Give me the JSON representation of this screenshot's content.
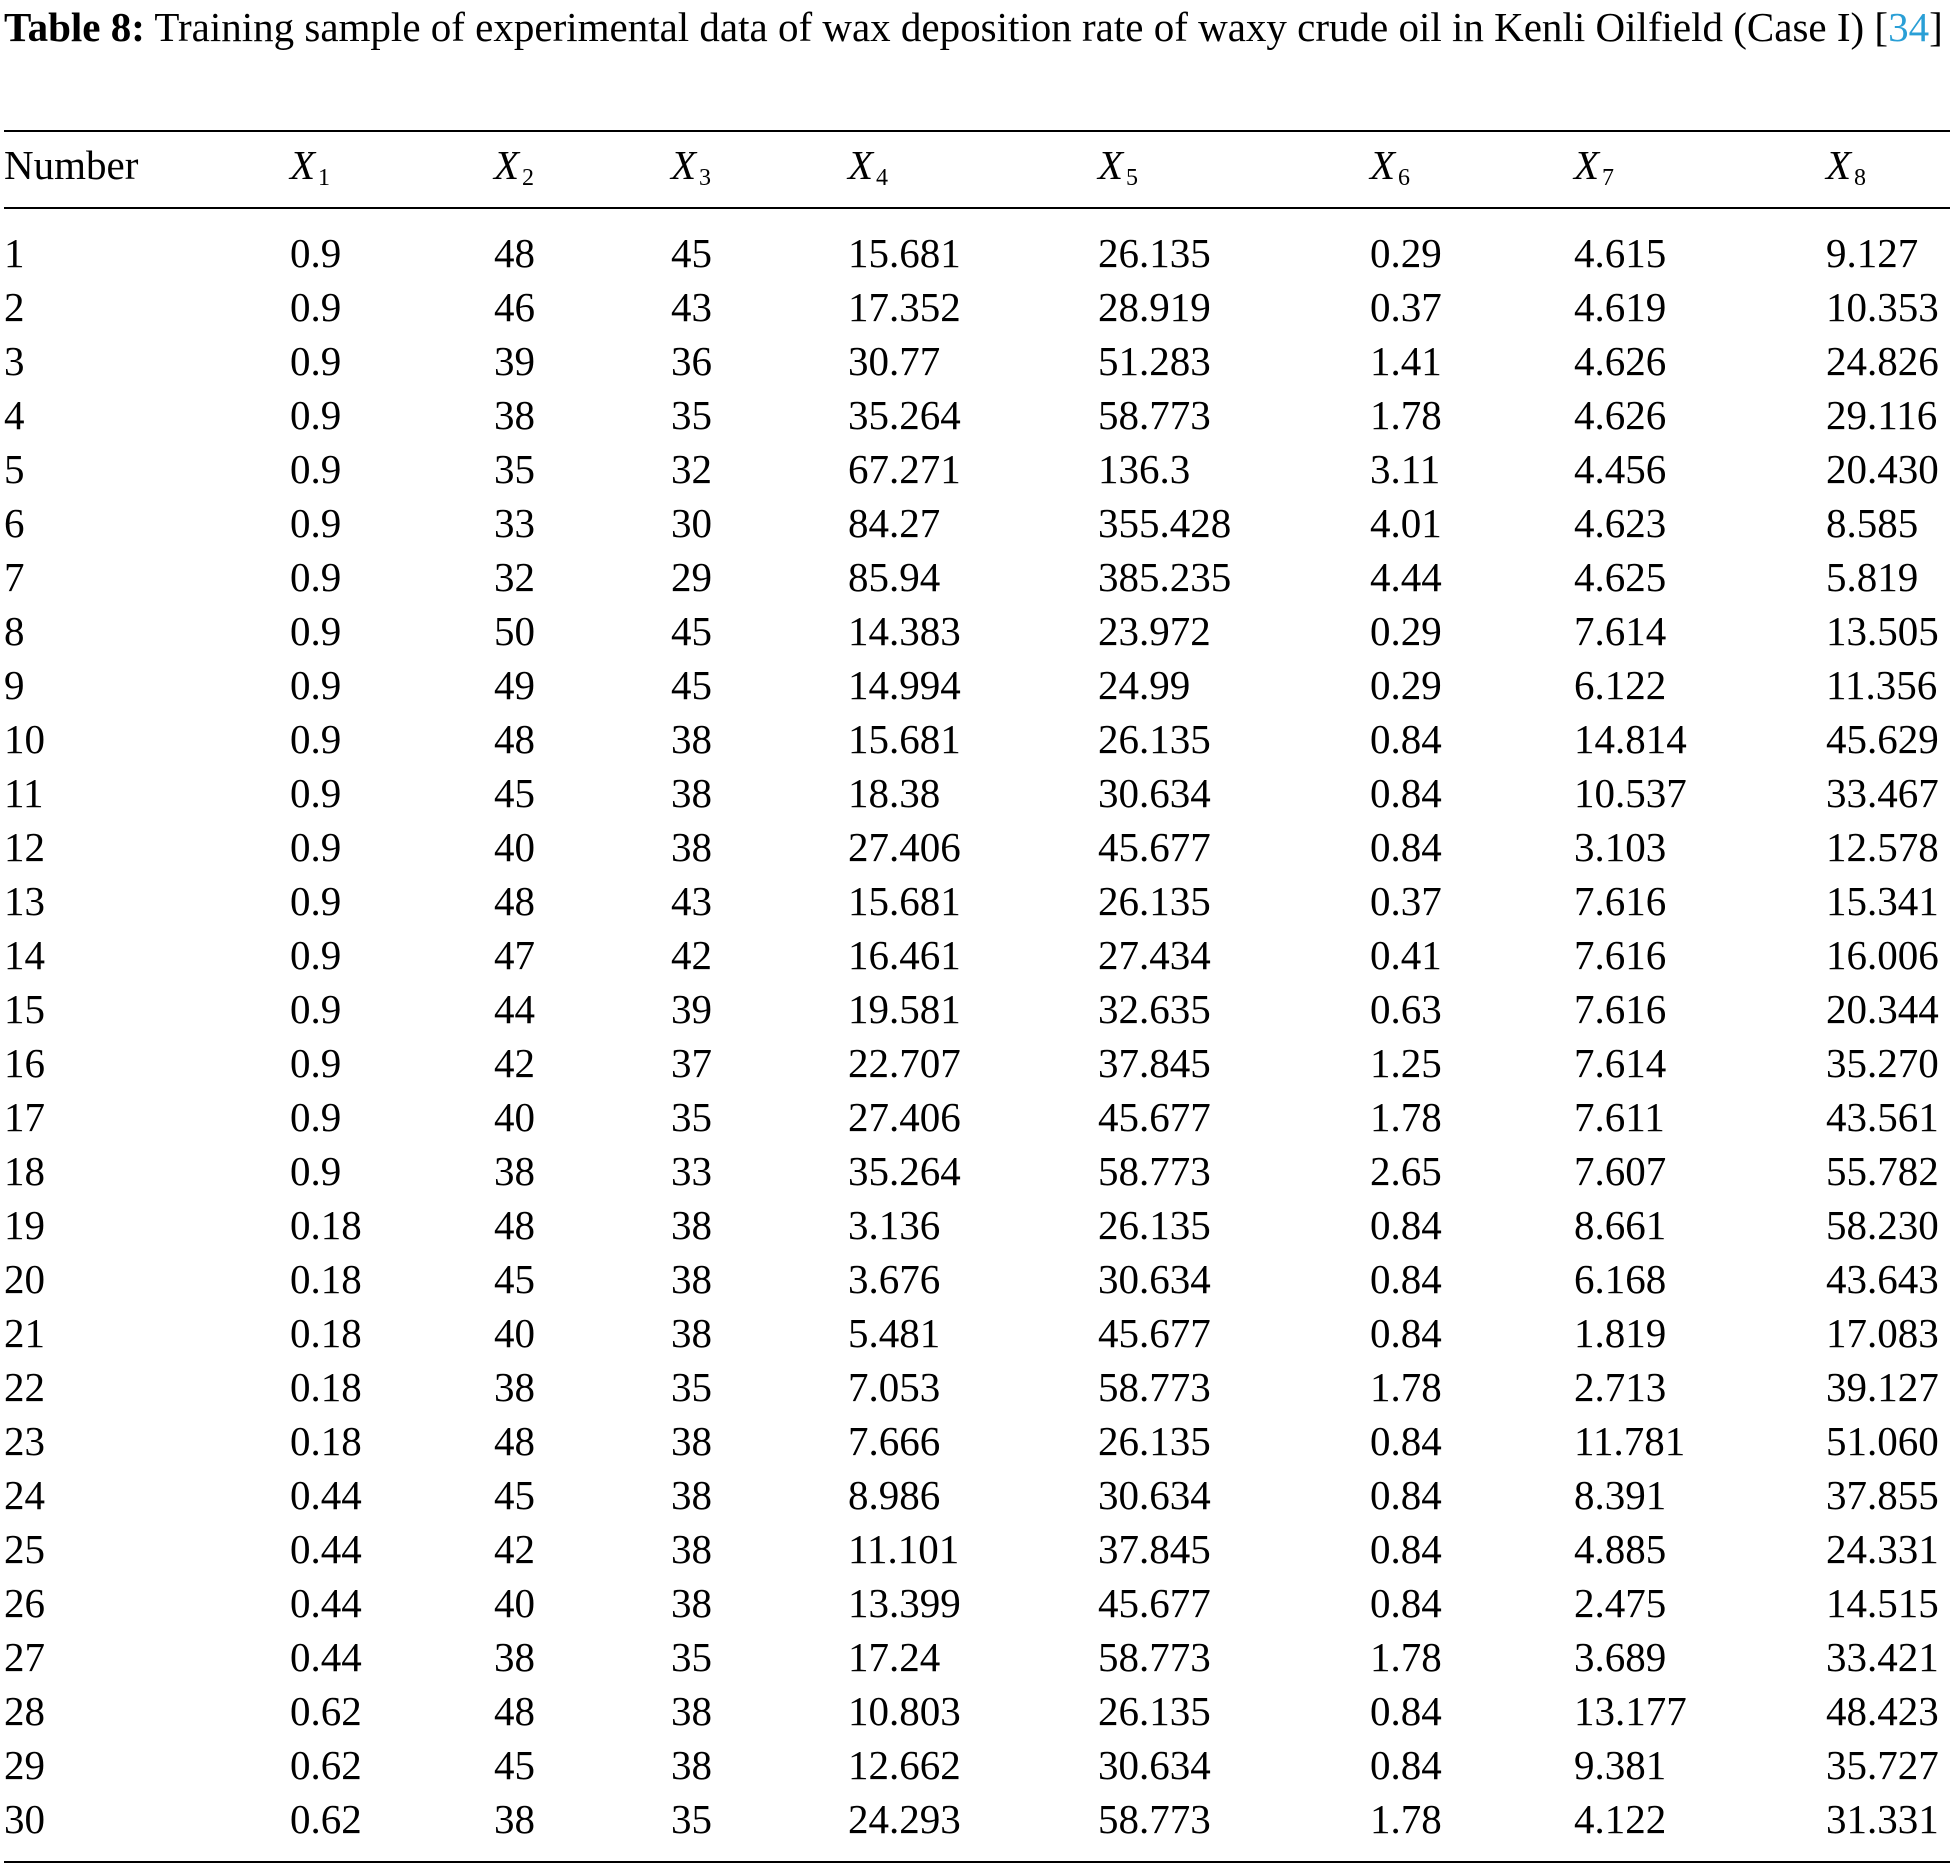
{
  "caption": {
    "label": "Table 8:",
    "text_before_cite": " Training sample of experimental data of wax deposition rate of waxy crude oil in Kenli Oilfield (Case I) [",
    "cite": "34",
    "text_after_cite": "]"
  },
  "table": {
    "header": {
      "number": "Number",
      "cols": [
        {
          "var": "X",
          "sub": "1"
        },
        {
          "var": "X",
          "sub": "2"
        },
        {
          "var": "X",
          "sub": "3"
        },
        {
          "var": "X",
          "sub": "4"
        },
        {
          "var": "X",
          "sub": "5"
        },
        {
          "var": "X",
          "sub": "6"
        },
        {
          "var": "X",
          "sub": "7"
        },
        {
          "var": "X",
          "sub": "8"
        }
      ]
    },
    "rows": [
      [
        "1",
        "0.9",
        "48",
        "45",
        "15.681",
        "26.135",
        "0.29",
        "4.615",
        "9.127"
      ],
      [
        "2",
        "0.9",
        "46",
        "43",
        "17.352",
        "28.919",
        "0.37",
        "4.619",
        "10.353"
      ],
      [
        "3",
        "0.9",
        "39",
        "36",
        "30.77",
        "51.283",
        "1.41",
        "4.626",
        "24.826"
      ],
      [
        "4",
        "0.9",
        "38",
        "35",
        "35.264",
        "58.773",
        "1.78",
        "4.626",
        "29.116"
      ],
      [
        "5",
        "0.9",
        "35",
        "32",
        "67.271",
        "136.3",
        "3.11",
        "4.456",
        "20.430"
      ],
      [
        "6",
        "0.9",
        "33",
        "30",
        "84.27",
        "355.428",
        "4.01",
        "4.623",
        "8.585"
      ],
      [
        "7",
        "0.9",
        "32",
        "29",
        "85.94",
        "385.235",
        "4.44",
        "4.625",
        "5.819"
      ],
      [
        "8",
        "0.9",
        "50",
        "45",
        "14.383",
        "23.972",
        "0.29",
        "7.614",
        "13.505"
      ],
      [
        "9",
        "0.9",
        "49",
        "45",
        "14.994",
        "24.99",
        "0.29",
        "6.122",
        "11.356"
      ],
      [
        "10",
        "0.9",
        "48",
        "38",
        "15.681",
        "26.135",
        "0.84",
        "14.814",
        "45.629"
      ],
      [
        "11",
        "0.9",
        "45",
        "38",
        "18.38",
        "30.634",
        "0.84",
        "10.537",
        "33.467"
      ],
      [
        "12",
        "0.9",
        "40",
        "38",
        "27.406",
        "45.677",
        "0.84",
        "3.103",
        "12.578"
      ],
      [
        "13",
        "0.9",
        "48",
        "43",
        "15.681",
        "26.135",
        "0.37",
        "7.616",
        "15.341"
      ],
      [
        "14",
        "0.9",
        "47",
        "42",
        "16.461",
        "27.434",
        "0.41",
        "7.616",
        "16.006"
      ],
      [
        "15",
        "0.9",
        "44",
        "39",
        "19.581",
        "32.635",
        "0.63",
        "7.616",
        "20.344"
      ],
      [
        "16",
        "0.9",
        "42",
        "37",
        "22.707",
        "37.845",
        "1.25",
        "7.614",
        "35.270"
      ],
      [
        "17",
        "0.9",
        "40",
        "35",
        "27.406",
        "45.677",
        "1.78",
        "7.611",
        "43.561"
      ],
      [
        "18",
        "0.9",
        "38",
        "33",
        "35.264",
        "58.773",
        "2.65",
        "7.607",
        "55.782"
      ],
      [
        "19",
        "0.18",
        "48",
        "38",
        "3.136",
        "26.135",
        "0.84",
        "8.661",
        "58.230"
      ],
      [
        "20",
        "0.18",
        "45",
        "38",
        "3.676",
        "30.634",
        "0.84",
        "6.168",
        "43.643"
      ],
      [
        "21",
        "0.18",
        "40",
        "38",
        "5.481",
        "45.677",
        "0.84",
        "1.819",
        "17.083"
      ],
      [
        "22",
        "0.18",
        "38",
        "35",
        "7.053",
        "58.773",
        "1.78",
        "2.713",
        "39.127"
      ],
      [
        "23",
        "0.18",
        "48",
        "38",
        "7.666",
        "26.135",
        "0.84",
        "11.781",
        "51.060"
      ],
      [
        "24",
        "0.44",
        "45",
        "38",
        "8.986",
        "30.634",
        "0.84",
        "8.391",
        "37.855"
      ],
      [
        "25",
        "0.44",
        "42",
        "38",
        "11.101",
        "37.845",
        "0.84",
        "4.885",
        "24.331"
      ],
      [
        "26",
        "0.44",
        "40",
        "38",
        "13.399",
        "45.677",
        "0.84",
        "2.475",
        "14.515"
      ],
      [
        "27",
        "0.44",
        "38",
        "35",
        "17.24",
        "58.773",
        "1.78",
        "3.689",
        "33.421"
      ],
      [
        "28",
        "0.62",
        "48",
        "38",
        "10.803",
        "26.135",
        "0.84",
        "13.177",
        "48.423"
      ],
      [
        "29",
        "0.62",
        "45",
        "38",
        "12.662",
        "30.634",
        "0.84",
        "9.381",
        "35.727"
      ],
      [
        "30",
        "0.62",
        "38",
        "35",
        "24.293",
        "58.773",
        "1.78",
        "4.122",
        "31.331"
      ]
    ]
  },
  "colors": {
    "text": "#000000",
    "citation_link": "#2a9fd6",
    "background": "#ffffff"
  }
}
